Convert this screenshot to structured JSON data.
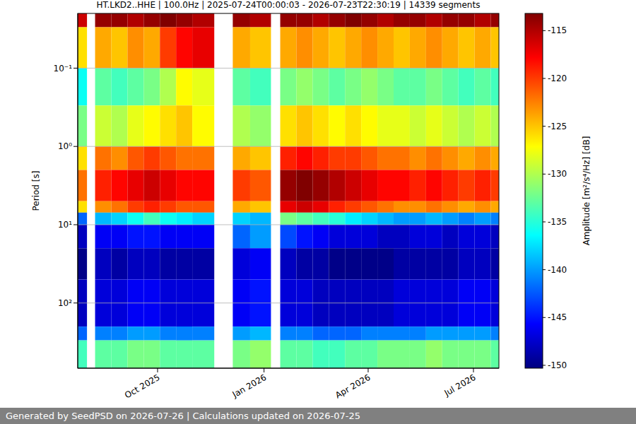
{
  "chart_data": {
    "type": "heatmap",
    "title": "HT.LKD2..HHE | 100.0Hz | 2025-07-24T00:00:03 - 2026-07-23T22:30:19 | 14339 segments",
    "footer": "Generated by SeedPSD on 2026-07-26 | Calculations updated on 2026-07-25",
    "x": [
      "2025-07-24",
      "2025-08-01",
      "2025-08-08",
      "2025-08-22",
      "2025-09-05",
      "2025-09-19",
      "2025-10-03",
      "2025-10-17",
      "2025-10-31",
      "2025-11-19",
      "2025-12-05",
      "2025-12-20",
      "2026-01-07",
      "2026-01-15",
      "2026-01-29",
      "2026-02-12",
      "2026-02-26",
      "2026-03-12",
      "2026-03-26",
      "2026-04-09",
      "2026-04-23",
      "2026-05-07",
      "2026-05-21",
      "2026-06-04",
      "2026-06-18",
      "2026-07-02",
      "2026-07-16",
      "2026-07-23"
    ],
    "xlim": [
      "2025-07-24",
      "2026-07-23"
    ],
    "xticks": [
      {
        "value": "2025-10-01",
        "label": "Oct 2025"
      },
      {
        "value": "2026-01-01",
        "label": "Jan 2026"
      },
      {
        "value": "2026-04-01",
        "label": "Apr 2026"
      },
      {
        "value": "2026-07-01",
        "label": "Jul 2026"
      }
    ],
    "y_label": "Period [s]",
    "y_bins": [
      0.02,
      0.03,
      0.1,
      0.3,
      1,
      2,
      5,
      7,
      10,
      20,
      50,
      200,
      300,
      680
    ],
    "ylim": [
      0.02,
      680
    ],
    "yticks": [
      {
        "value": 0.1,
        "label": "10⁻¹"
      },
      {
        "value": 1,
        "label": "10⁰"
      },
      {
        "value": 10,
        "label": "10¹"
      },
      {
        "value": 100,
        "label": "10²"
      }
    ],
    "log": "y",
    "grid": true,
    "cells": [
      [
        -116,
        null,
        -114,
        -114,
        -115,
        -114,
        -113,
        -114,
        -115,
        null,
        -114,
        -115,
        null,
        -114,
        -114,
        -115,
        -114,
        -113,
        -114,
        -115,
        -114,
        -114,
        -115,
        -114,
        -114,
        -115,
        -114
      ],
      [
        -126,
        null,
        -124,
        -125,
        -123,
        -124,
        -120,
        -118,
        -117,
        null,
        -124,
        -125,
        null,
        -124,
        -123,
        -124,
        -125,
        -124,
        -123,
        -124,
        -125,
        -124,
        -123,
        -124,
        -125,
        -124,
        -125
      ],
      [
        -136,
        null,
        -133,
        -134,
        -133,
        -132,
        -130,
        -127,
        -128,
        null,
        -133,
        -134,
        null,
        -132,
        -131,
        -132,
        -133,
        -132,
        -131,
        -132,
        -133,
        -133,
        -132,
        -133,
        -134,
        -133,
        -134
      ],
      [
        -132,
        null,
        -129,
        -130,
        -128,
        -127,
        -126,
        -125,
        -127,
        null,
        -130,
        -131,
        null,
        -126,
        -125,
        -126,
        -127,
        -126,
        -127,
        -128,
        -128,
        -129,
        -128,
        -129,
        -130,
        -129,
        -130
      ],
      [
        -126,
        null,
        -122,
        -123,
        -121,
        -120,
        -121,
        -122,
        -122,
        null,
        -124,
        -125,
        null,
        -119,
        -118,
        -119,
        -120,
        -120,
        -121,
        -122,
        -122,
        -123,
        -122,
        -123,
        -124,
        -123,
        -124
      ],
      [
        -122,
        null,
        -119,
        -118,
        -117,
        -116,
        -117,
        -118,
        -118,
        null,
        -120,
        -121,
        null,
        -114,
        -113,
        -114,
        -115,
        -116,
        -117,
        -118,
        -118,
        -119,
        -118,
        -119,
        -120,
        -119,
        -120
      ],
      [
        -126,
        null,
        -123,
        -122,
        -120,
        -119,
        -120,
        -121,
        -121,
        null,
        -124,
        -125,
        null,
        -117,
        -116,
        -117,
        -119,
        -120,
        -121,
        -122,
        -123,
        -123,
        -122,
        -123,
        -124,
        -123,
        -124
      ],
      [
        -142,
        null,
        -139,
        -138,
        -136,
        -134,
        -136,
        -137,
        -138,
        null,
        -138,
        -139,
        null,
        -132,
        -133,
        -134,
        -135,
        -137,
        -138,
        -139,
        -140,
        -140,
        -139,
        -140,
        -141,
        -140,
        -141
      ],
      [
        -148,
        null,
        -146,
        -146,
        -145,
        -145,
        -146,
        -146,
        -146,
        null,
        -142,
        -140,
        null,
        -143,
        -145,
        -146,
        -147,
        -147,
        -147,
        -148,
        -148,
        -147,
        -147,
        -148,
        -147,
        -147,
        -148
      ],
      [
        -150,
        null,
        -148,
        -149,
        -148,
        -148,
        -149,
        -149,
        -149,
        null,
        -147,
        -146,
        null,
        -148,
        -149,
        -149,
        -150,
        -150,
        -150,
        -150,
        -149,
        -149,
        -149,
        -149,
        -148,
        -148,
        -149
      ],
      [
        -148,
        null,
        -147,
        -147,
        -146,
        -146,
        -147,
        -147,
        -147,
        null,
        -146,
        -145,
        null,
        -147,
        -147,
        -148,
        -148,
        -148,
        -148,
        -148,
        -147,
        -147,
        -147,
        -147,
        -146,
        -146,
        -147
      ],
      [
        -142,
        null,
        -141,
        -141,
        -140,
        -140,
        -141,
        -141,
        -141,
        null,
        -140,
        -139,
        null,
        -141,
        -141,
        -142,
        -142,
        -142,
        -141,
        -141,
        -141,
        -141,
        -140,
        -140,
        -140,
        -140,
        -141
      ],
      [
        -134,
        null,
        -133,
        -133,
        -132,
        -132,
        -133,
        -133,
        -133,
        null,
        -132,
        -131,
        null,
        -133,
        -133,
        -134,
        -134,
        -133,
        -133,
        -132,
        -132,
        -132,
        -131,
        -132,
        -132,
        -132,
        -133
      ]
    ],
    "colorbar": {
      "label": "Amplitude [m²/s⁴/Hz] [dB]",
      "range": [
        -150.3,
        -113.2
      ],
      "ticks": [
        -115,
        -120,
        -125,
        -130,
        -135,
        -140,
        -145,
        -150
      ]
    }
  }
}
